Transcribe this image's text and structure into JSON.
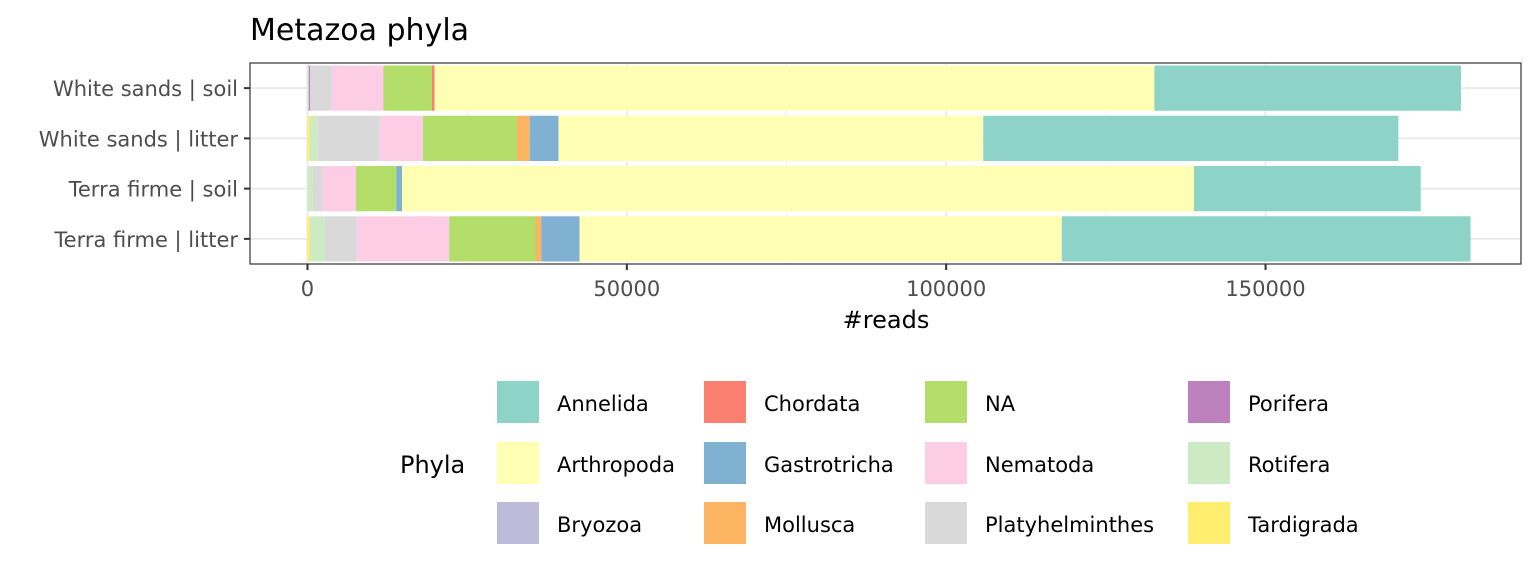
{
  "chart_data": {
    "type": "bar",
    "orientation": "horizontal",
    "stacked": true,
    "title": "Metazoa phyla",
    "xlabel": "#reads",
    "ylabel": "",
    "xlim": [
      -9000,
      190000
    ],
    "xticks": [
      0,
      50000,
      100000,
      150000
    ],
    "xtick_labels": [
      "0",
      "50000",
      "100000",
      "150000"
    ],
    "grid": true,
    "categories": [
      "White sands | soil",
      "White sands | litter",
      "Terra firme | soil",
      "Terra firme | litter"
    ],
    "series": [
      {
        "name": "Tardigrada",
        "color": "#FFED6F",
        "values": [
          0,
          400,
          0,
          400
        ]
      },
      {
        "name": "Rotifera",
        "color": "#CCEBC5",
        "values": [
          200,
          1200,
          800,
          2300
        ]
      },
      {
        "name": "Porifera",
        "color": "#BC80BD",
        "values": [
          200,
          0,
          0,
          0
        ]
      },
      {
        "name": "Platyhelminthes",
        "color": "#D9D9D9",
        "values": [
          3400,
          9800,
          1600,
          5000
        ]
      },
      {
        "name": "Nematoda",
        "color": "#FCCDE5",
        "values": [
          8100,
          6700,
          5200,
          14500
        ]
      },
      {
        "name": "NA",
        "color": "#B3DE69",
        "values": [
          7600,
          14700,
          6300,
          13500
        ]
      },
      {
        "name": "Mollusca",
        "color": "#FDB462",
        "values": [
          0,
          2000,
          0,
          900
        ]
      },
      {
        "name": "Gastrotricha",
        "color": "#80B1D3",
        "values": [
          0,
          4500,
          900,
          6000
        ]
      },
      {
        "name": "Chordata",
        "color": "#FB8072",
        "values": [
          400,
          0,
          0,
          0
        ]
      },
      {
        "name": "Bryozoa",
        "color": "#BEBADA",
        "values": [
          0,
          0,
          0,
          0
        ]
      },
      {
        "name": "Arthropoda",
        "color": "#FFFFB3",
        "values": [
          112700,
          66500,
          124000,
          75500
        ]
      },
      {
        "name": "Annelida",
        "color": "#8DD3C7",
        "values": [
          48000,
          65000,
          35500,
          64000
        ]
      }
    ],
    "legend": {
      "title": "Phyla",
      "position": "bottom",
      "entries": [
        "Annelida",
        "Arthropoda",
        "Bryozoa",
        "Chordata",
        "Gastrotricha",
        "Mollusca",
        "NA",
        "Nematoda",
        "Platyhelminthes",
        "Porifera",
        "Rotifera",
        "Tardigrada"
      ]
    }
  }
}
